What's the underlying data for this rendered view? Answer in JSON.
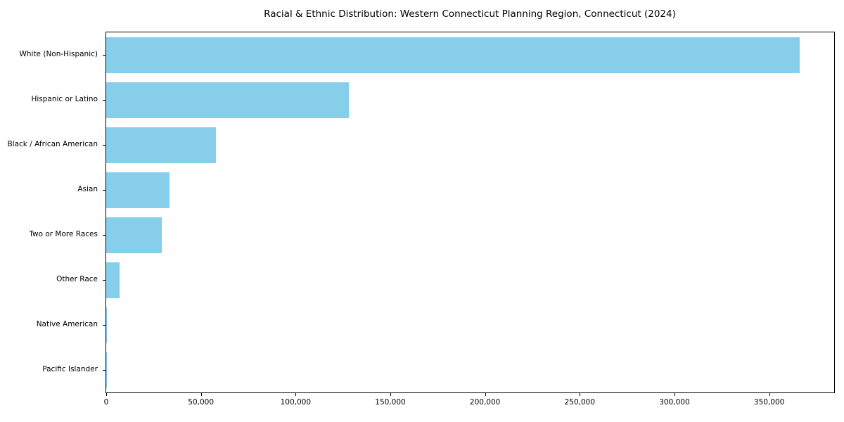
{
  "figure": {
    "background_color": "#ffffff"
  },
  "chart_data": {
    "type": "bar",
    "orientation": "horizontal",
    "title": "Racial & Ethnic Distribution: Western Connecticut Planning Region, Connecticut (2024)",
    "categories": [
      "White (Non-Hispanic)",
      "Hispanic or Latino",
      "Black / African American",
      "Asian",
      "Two or More Races",
      "Other Race",
      "Native American",
      "Pacific Islander"
    ],
    "values": [
      366000,
      128000,
      58000,
      33500,
      29500,
      7000,
      500,
      100
    ],
    "bar_color": "#87CEEB",
    "axis_color": "#000000",
    "text_color": "#000000",
    "xlabel": "",
    "ylabel": "",
    "xlim": [
      0,
      384300
    ],
    "x_ticks": [
      0,
      50000,
      100000,
      150000,
      200000,
      250000,
      300000,
      350000
    ],
    "x_tick_labels": [
      "0",
      "50,000",
      "100,000",
      "150,000",
      "200,000",
      "250,000",
      "300,000",
      "350,000"
    ],
    "grid": false,
    "legend_position": "none"
  }
}
